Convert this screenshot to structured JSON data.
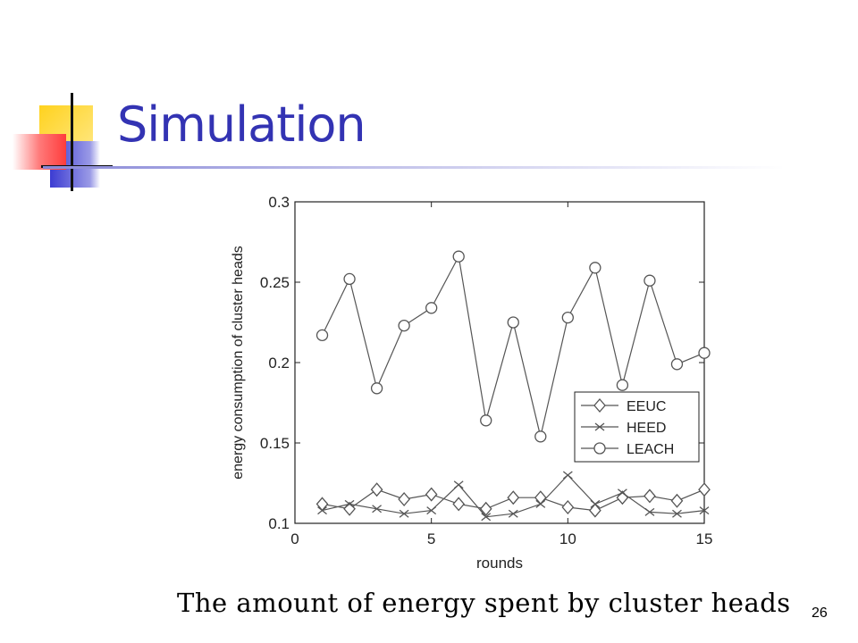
{
  "slide": {
    "title": "Simulation",
    "caption": "The amount of energy spent by cluster heads",
    "number": "26"
  },
  "colors": {
    "title": "#3333b3",
    "accent_yellow": "#ffd21e",
    "accent_red": "#ff3c3c",
    "accent_blue": "#3c3cd2",
    "series_line": "#555555"
  },
  "chart_data": {
    "type": "line",
    "title": "",
    "xlabel": "rounds",
    "ylabel": "energy consumption of cluster heads",
    "xlim": [
      0,
      15
    ],
    "ylim": [
      0.1,
      0.3
    ],
    "xticks": [
      "0",
      "5",
      "10",
      "15"
    ],
    "yticks": [
      "0.1",
      "0.15",
      "0.2",
      "0.25",
      "0.3"
    ],
    "grid": false,
    "legend_position": "right",
    "x": [
      1,
      2,
      3,
      4,
      5,
      6,
      7,
      8,
      9,
      10,
      11,
      12,
      13,
      14,
      15
    ],
    "series": [
      {
        "name": "EEUC",
        "marker": "diamond",
        "values": [
          0.112,
          0.109,
          0.121,
          0.115,
          0.118,
          0.112,
          0.109,
          0.116,
          0.116,
          0.11,
          0.108,
          0.116,
          0.117,
          0.114,
          0.121
        ]
      },
      {
        "name": "HEED",
        "marker": "x",
        "values": [
          0.108,
          0.112,
          0.109,
          0.106,
          0.108,
          0.124,
          0.104,
          0.106,
          0.112,
          0.13,
          0.112,
          0.119,
          0.107,
          0.106,
          0.108
        ]
      },
      {
        "name": "LEACH",
        "marker": "circle",
        "values": [
          0.217,
          0.252,
          0.184,
          0.223,
          0.234,
          0.266,
          0.164,
          0.225,
          0.154,
          0.228,
          0.259,
          0.186,
          0.251,
          0.199,
          0.206
        ]
      }
    ]
  }
}
